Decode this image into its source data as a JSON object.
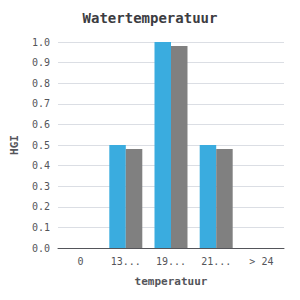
{
  "chart_data": {
    "type": "bar",
    "title": "Watertemperatuur",
    "xlabel": "temperatuur",
    "ylabel": "HGI",
    "categories": [
      "0",
      "13...",
      "19...",
      "21...",
      "> 24"
    ],
    "series": [
      {
        "color": "#3aacdf",
        "values": [
          0.0,
          0.5,
          1.0,
          0.5,
          0.0
        ]
      },
      {
        "color": "#808080",
        "values": [
          0.0,
          0.48,
          0.98,
          0.48,
          0.0
        ]
      }
    ],
    "ylim": [
      0.0,
      1.0
    ],
    "yticks": [
      {
        "value": 0.0,
        "label": "0.0"
      },
      0.1,
      0.2,
      0.3,
      0.4,
      0.5,
      0.6,
      0.7,
      0.8,
      0.9,
      {
        "value": 1.0,
        "label": "1.0"
      }
    ],
    "grid": true
  }
}
